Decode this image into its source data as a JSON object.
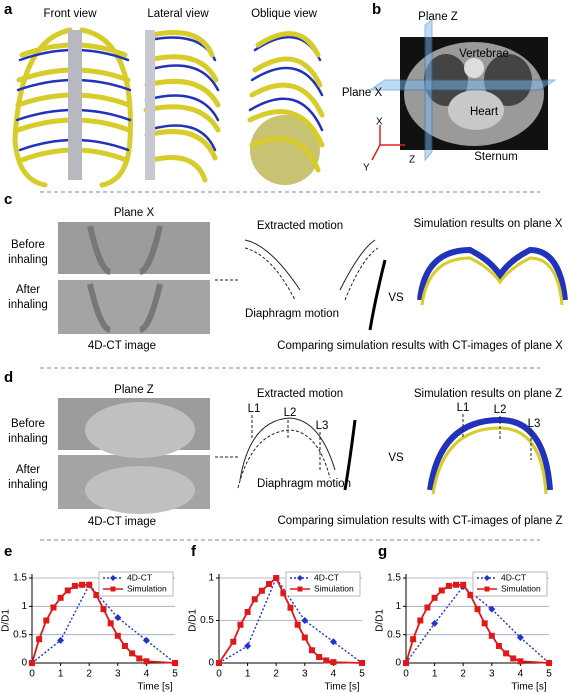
{
  "panels": {
    "a": {
      "letter": "a",
      "front": "Front view",
      "lateral": "Lateral view",
      "oblique": "Oblique view"
    },
    "b": {
      "letter": "b",
      "plane_z": "Plane Z",
      "plane_x": "Plane X",
      "vertebrae": "Vertebrae",
      "heart": "Heart",
      "sternum": "Sternum",
      "axis_x": "X",
      "axis_y": "Y",
      "axis_z": "Z"
    },
    "c": {
      "letter": "c",
      "plane": "Plane X",
      "before": [
        "Before",
        "inhaling"
      ],
      "after": [
        "After",
        "inhaling"
      ],
      "image": "4D-CT image",
      "extracted": "Extracted motion",
      "diaphragm": "Diaphragm motion",
      "vs": "VS",
      "sim": "Simulation results on plane X",
      "comparing": "Comparing  simulation results  with CT-images of plane X"
    },
    "d": {
      "letter": "d",
      "plane": "Plane Z",
      "before": [
        "Before",
        "inhaling"
      ],
      "after": [
        "After",
        "inhaling"
      ],
      "image": "4D-CT image",
      "extracted": "Extracted motion",
      "levels": [
        "L1",
        "L2",
        "L3"
      ],
      "diaphragm": "Diaphragm motion",
      "vs": "VS",
      "sim": "Simulation results on plane Z",
      "sim_levels": [
        "L1",
        "L2",
        "L3"
      ],
      "comparing": "Comparing  simulation results  with CT-images of plane Z"
    }
  },
  "chart_data": [
    {
      "type": "line",
      "panel": "e",
      "ylabel": "D/D1",
      "xlabel": "Time [s]",
      "xlim": [
        0,
        5
      ],
      "xticks": [
        0,
        1,
        2,
        3,
        4,
        5
      ],
      "ylim": [
        0,
        1.5
      ],
      "yticks": [
        0,
        0.5,
        1,
        1.5
      ],
      "grid": true,
      "legend": "upper right",
      "series": [
        {
          "name": "4D-CT",
          "color": "#2233cc",
          "line_style": "dotted",
          "marker": "diamond",
          "x": [
            0,
            1,
            2,
            3,
            4,
            5
          ],
          "values": [
            0,
            0.4,
            1.38,
            0.8,
            0.4,
            0
          ]
        },
        {
          "name": "Simulation",
          "color": "#e01818",
          "line_style": "solid",
          "marker": "square",
          "x": [
            0,
            0.25,
            0.5,
            0.75,
            1,
            1.25,
            1.5,
            1.75,
            2,
            2.25,
            2.5,
            2.75,
            3,
            3.25,
            3.5,
            3.75,
            4,
            5
          ],
          "values": [
            0,
            0.42,
            0.75,
            0.98,
            1.15,
            1.28,
            1.36,
            1.38,
            1.38,
            1.2,
            0.95,
            0.7,
            0.48,
            0.3,
            0.17,
            0.08,
            0.03,
            0
          ]
        }
      ]
    },
    {
      "type": "line",
      "panel": "f",
      "ylabel": "D/D1",
      "xlabel": "Time [s]",
      "xlim": [
        0,
        5
      ],
      "xticks": [
        0,
        1,
        2,
        3,
        4,
        5
      ],
      "ylim": [
        0,
        1
      ],
      "yticks": [
        0,
        0.5,
        1
      ],
      "grid": true,
      "legend": "upper right",
      "series": [
        {
          "name": "4D-CT",
          "color": "#2233cc",
          "line_style": "dotted",
          "marker": "diamond",
          "x": [
            0,
            1,
            2,
            3,
            4,
            5
          ],
          "values": [
            0,
            0.2,
            1,
            0.5,
            0.25,
            0
          ]
        },
        {
          "name": "Simulation",
          "color": "#e01818",
          "line_style": "solid",
          "marker": "square",
          "x": [
            0,
            0.5,
            0.75,
            1,
            1.25,
            1.5,
            1.75,
            2,
            2.25,
            2.5,
            2.75,
            3,
            3.25,
            3.5,
            3.75,
            4,
            5
          ],
          "values": [
            0,
            0.25,
            0.45,
            0.6,
            0.75,
            0.85,
            0.93,
            1,
            0.82,
            0.65,
            0.45,
            0.3,
            0.15,
            0.07,
            0.03,
            0.01,
            0
          ]
        }
      ]
    },
    {
      "type": "line",
      "panel": "g",
      "ylabel": "D/D1",
      "xlabel": "Time [s]",
      "xlim": [
        0,
        5
      ],
      "xticks": [
        0,
        1,
        2,
        3,
        4,
        5
      ],
      "ylim": [
        0,
        1.5
      ],
      "yticks": [
        0,
        0.5,
        1,
        1.5
      ],
      "grid": true,
      "legend": "upper right",
      "series": [
        {
          "name": "4D-CT",
          "color": "#2233cc",
          "line_style": "dotted",
          "marker": "diamond",
          "x": [
            0,
            1,
            2,
            3,
            4,
            5
          ],
          "values": [
            0,
            0.7,
            1.35,
            0.95,
            0.45,
            0
          ]
        },
        {
          "name": "Simulation",
          "color": "#e01818",
          "line_style": "solid",
          "marker": "square",
          "x": [
            0,
            0.25,
            0.5,
            0.75,
            1,
            1.25,
            1.5,
            1.75,
            2,
            2.25,
            2.5,
            2.75,
            3,
            3.25,
            3.5,
            3.75,
            4,
            5
          ],
          "values": [
            0,
            0.42,
            0.75,
            0.98,
            1.15,
            1.28,
            1.36,
            1.38,
            1.38,
            1.2,
            0.95,
            0.7,
            0.48,
            0.3,
            0.17,
            0.08,
            0.03,
            0
          ]
        }
      ]
    }
  ]
}
